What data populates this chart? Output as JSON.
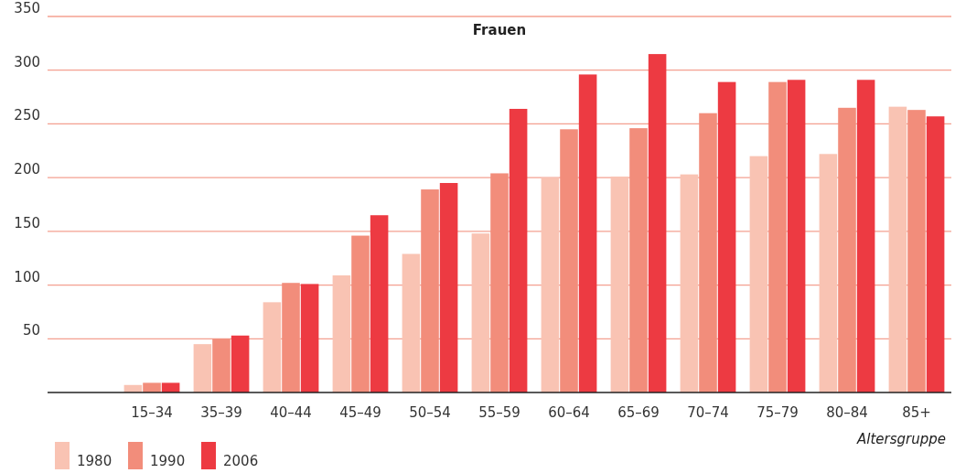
{
  "chart_data": {
    "type": "bar",
    "title": "Frauen",
    "xlabel": "Altersgruppe",
    "categories": [
      null,
      "15–34",
      "35–39",
      "40–44",
      "45–49",
      "50–54",
      "55–59",
      "60–64",
      "65–69",
      "70–74",
      "75–79",
      "80–84",
      "85+"
    ],
    "series": [
      {
        "name": "1980",
        "color": "#f9c3b3",
        "values": [
          null,
          7,
          45,
          84,
          109,
          129,
          148,
          200,
          201,
          203,
          220,
          222,
          266
        ]
      },
      {
        "name": "1990",
        "color": "#f28d7b",
        "values": [
          null,
          9,
          50,
          102,
          146,
          189,
          204,
          245,
          246,
          260,
          289,
          265,
          263
        ]
      },
      {
        "name": "2006",
        "color": "#ed3a42",
        "values": [
          null,
          9,
          53,
          101,
          165,
          195,
          264,
          296,
          315,
          289,
          291,
          291,
          257
        ]
      }
    ],
    "ylim": [
      0,
      350
    ],
    "yticks": [
      50,
      100,
      150,
      200,
      250,
      300,
      350
    ],
    "grid": "y",
    "legend": "bottom left"
  }
}
